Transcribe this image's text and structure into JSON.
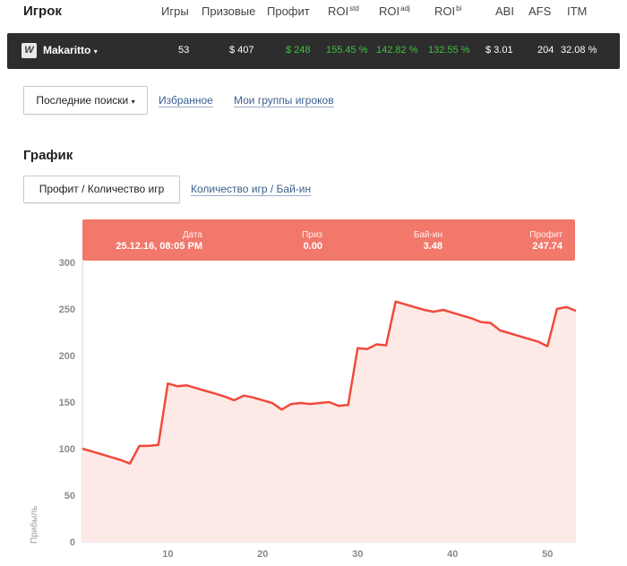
{
  "header": {
    "player": "Игрок",
    "games": "Игры",
    "prize": "Призовые",
    "profit": "Профит",
    "roi_std": "ROI",
    "roi_std_sup": "std",
    "roi_adj": "ROI",
    "roi_adj_sup": "adj",
    "roi_bi": "ROI",
    "roi_bi_sup": "bi",
    "abi": "ABI",
    "afs": "AFS",
    "itm": "ITM"
  },
  "player_row": {
    "logo_letter": "W",
    "name": "Makaritto",
    "caret": "▾",
    "games": "53",
    "prize": "$ 407",
    "profit": "$ 248",
    "roi_std": "155.45 %",
    "roi_adj": "142.82 %",
    "roi_bi": "132.55 %",
    "abi": "$ 3.01",
    "afs": "204",
    "itm": "32.08 %"
  },
  "nav": {
    "recent_searches": "Последние поиски",
    "caret": "▾",
    "favorites": "Избранное",
    "my_groups": "Мои группы игроков"
  },
  "chart_section": {
    "title": "График",
    "tab_active": "Профит / Количество игр",
    "tab_other": "Количество игр / Бай-ин"
  },
  "tooltip": {
    "date_label": "Дата",
    "date_value": "25.12.16, 08:05 PM",
    "prize_label": "Приз",
    "prize_value": "0.00",
    "buyin_label": "Бай-ин",
    "buyin_value": "3.48",
    "profit_label": "Профит",
    "profit_value": "247.74"
  },
  "colors": {
    "line": "#f04a3c",
    "fill": "#fdeae7",
    "tooltip_bg": "#f1786b",
    "positive": "#3ec13e"
  },
  "chart_data": {
    "type": "area",
    "ylabel": "Прибыль",
    "xlabel": "",
    "ylim": [
      0,
      300
    ],
    "xlim": [
      1,
      53
    ],
    "yticks": [
      "0",
      "50",
      "100",
      "150",
      "200",
      "250",
      "300"
    ],
    "xticks": [
      "10",
      "20",
      "30",
      "40",
      "50"
    ],
    "grid": false,
    "series": [
      {
        "x": [
          1,
          2,
          3,
          4,
          5,
          6,
          7,
          8,
          9,
          10,
          11,
          12,
          13,
          14,
          15,
          16,
          17,
          18,
          19,
          20,
          21,
          22,
          23,
          24,
          25,
          26,
          27,
          28,
          29,
          30,
          31,
          32,
          33,
          34,
          35,
          36,
          37,
          38,
          39,
          40,
          41,
          42,
          43,
          44,
          45,
          46,
          47,
          48,
          49,
          50,
          51,
          52,
          53
        ],
        "values": [
          100,
          97,
          94,
          91,
          88,
          84,
          103,
          103,
          104,
          170,
          167,
          168,
          165,
          162,
          159,
          156,
          152,
          157,
          155,
          152,
          149,
          142,
          148,
          149,
          148,
          149,
          150,
          146,
          147,
          208,
          207,
          212,
          211,
          258,
          255,
          252,
          249,
          247,
          249,
          246,
          243,
          240,
          236,
          235,
          227,
          224,
          221,
          218,
          215,
          210,
          250,
          252,
          248
        ]
      }
    ]
  }
}
